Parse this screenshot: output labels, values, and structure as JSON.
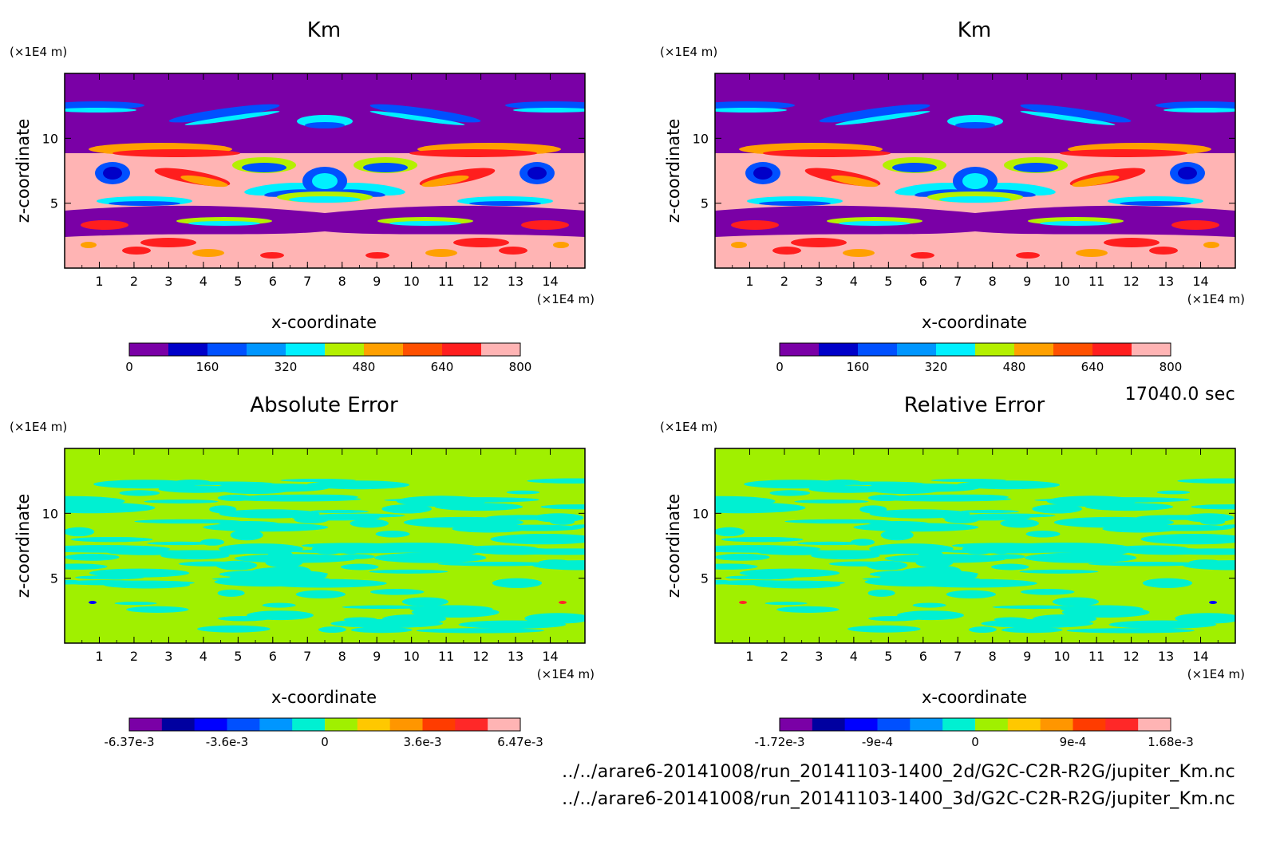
{
  "time_label": "17040.0 sec",
  "files": [
    "../../arare6-20141008/run_20141103-1400_2d/G2C-C2R-R2G/jupiter_Km.nc",
    "../../arare6-20141008/run_20141103-1400_3d/G2C-C2R-R2G/jupiter_Km.nc"
  ],
  "chart_data": [
    {
      "type": "heatmap",
      "title": "Km",
      "xlabel": "x-coordinate",
      "ylabel": "z-coordinate",
      "x_unit": "(×1E4 m)",
      "y_unit": "(×1E4 m)",
      "xlim": [
        0,
        15
      ],
      "ylim": [
        0,
        15
      ],
      "x_ticks": [
        "1",
        "2",
        "3",
        "4",
        "5",
        "6",
        "7",
        "8",
        "9",
        "10",
        "11",
        "12",
        "13",
        "14"
      ],
      "y_ticks": [
        "5",
        "10"
      ],
      "colorbar": {
        "colors": [
          "#7a00a6",
          "#0000c8",
          "#0050ff",
          "#0096ff",
          "#00f0ff",
          "#b4f000",
          "#ffa000",
          "#ff5000",
          "#ff1e1e",
          "#ffb4b4"
        ],
        "labels": [
          "0",
          "160",
          "320",
          "480",
          "640",
          "800"
        ]
      }
    },
    {
      "type": "heatmap",
      "title": "Km",
      "xlabel": "x-coordinate",
      "ylabel": "z-coordinate",
      "x_unit": "(×1E4 m)",
      "y_unit": "(×1E4 m)",
      "xlim": [
        0,
        15
      ],
      "ylim": [
        0,
        15
      ],
      "x_ticks": [
        "1",
        "2",
        "3",
        "4",
        "5",
        "6",
        "7",
        "8",
        "9",
        "10",
        "11",
        "12",
        "13",
        "14"
      ],
      "y_ticks": [
        "5",
        "10"
      ],
      "colorbar": {
        "colors": [
          "#7a00a6",
          "#0000c8",
          "#0050ff",
          "#0096ff",
          "#00f0ff",
          "#b4f000",
          "#ffa000",
          "#ff5000",
          "#ff1e1e",
          "#ffb4b4"
        ],
        "labels": [
          "0",
          "160",
          "320",
          "480",
          "640",
          "800"
        ]
      }
    },
    {
      "type": "heatmap",
      "title": "Absolute Error",
      "xlabel": "x-coordinate",
      "ylabel": "z-coordinate",
      "x_unit": "(×1E4 m)",
      "y_unit": "(×1E4 m)",
      "xlim": [
        0,
        15
      ],
      "ylim": [
        0,
        15
      ],
      "x_ticks": [
        "1",
        "2",
        "3",
        "4",
        "5",
        "6",
        "7",
        "8",
        "9",
        "10",
        "11",
        "12",
        "13",
        "14"
      ],
      "y_ticks": [
        "5",
        "10"
      ],
      "colorbar": {
        "colors": [
          "#7a00a6",
          "#0000a0",
          "#0000ff",
          "#0050ff",
          "#0096ff",
          "#00f0d2",
          "#a0f000",
          "#ffc800",
          "#ff9600",
          "#ff3c00",
          "#ff2828",
          "#ffb4b4"
        ],
        "labels": [
          "-6.37e-3",
          "-3.6e-3",
          "0",
          "3.6e-3",
          "6.47e-3"
        ]
      }
    },
    {
      "type": "heatmap",
      "title": "Relative Error",
      "xlabel": "x-coordinate",
      "ylabel": "z-coordinate",
      "x_unit": "(×1E4 m)",
      "y_unit": "(×1E4 m)",
      "xlim": [
        0,
        15
      ],
      "ylim": [
        0,
        15
      ],
      "x_ticks": [
        "1",
        "2",
        "3",
        "4",
        "5",
        "6",
        "7",
        "8",
        "9",
        "10",
        "11",
        "12",
        "13",
        "14"
      ],
      "y_ticks": [
        "5",
        "10"
      ],
      "colorbar": {
        "colors": [
          "#7a00a6",
          "#0000a0",
          "#0000ff",
          "#0050ff",
          "#0096ff",
          "#00f0d2",
          "#a0f000",
          "#ffc800",
          "#ff9600",
          "#ff3c00",
          "#ff2828",
          "#ffb4b4"
        ],
        "labels": [
          "-1.72e-3",
          "-9e-4",
          "0",
          "9e-4",
          "1.68e-3"
        ]
      }
    }
  ]
}
